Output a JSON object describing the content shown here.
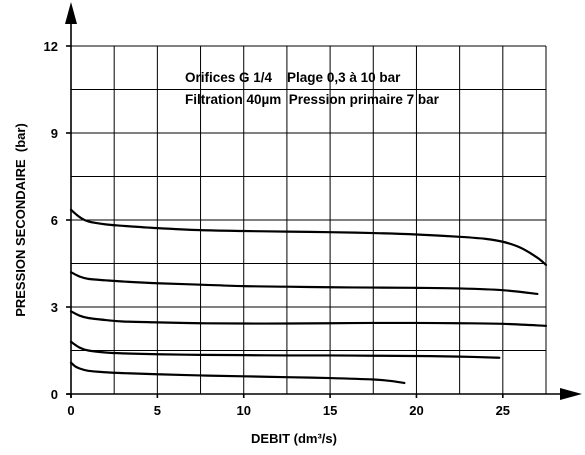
{
  "chart_data": {
    "type": "line",
    "xlabel": "DEBIT (dm³/s)",
    "ylabel": "PRESSION SECONDAIRE  (bar)",
    "xlim": [
      0,
      27.5
    ],
    "ylim": [
      0,
      12
    ],
    "x_ticks": [
      0,
      5,
      10,
      15,
      20,
      25
    ],
    "y_ticks": [
      0,
      3,
      6,
      9,
      12
    ],
    "x_grid_step": 2.5,
    "y_grid_step": 1.5,
    "grid": true,
    "annotations": [
      "Orifices G 1/4    Plage 0,3 à 10 bar",
      "Filtration 40µm  Pression primaire 7 bar"
    ],
    "series": [
      {
        "x": [
          0,
          0.5,
          1,
          2,
          3,
          5,
          7.5,
          10,
          12.5,
          15,
          17.5,
          20,
          22.5,
          24,
          25,
          26,
          27,
          27.5
        ],
        "y": [
          6.35,
          6.1,
          5.95,
          5.85,
          5.8,
          5.72,
          5.65,
          5.62,
          5.6,
          5.58,
          5.55,
          5.5,
          5.42,
          5.35,
          5.25,
          5.05,
          4.7,
          4.45
        ]
      },
      {
        "x": [
          0,
          0.5,
          1,
          2,
          3,
          5,
          7.5,
          10,
          12.5,
          15,
          17.5,
          20,
          22.5,
          25,
          27
        ],
        "y": [
          4.2,
          4.05,
          3.97,
          3.92,
          3.88,
          3.82,
          3.77,
          3.72,
          3.7,
          3.68,
          3.67,
          3.66,
          3.64,
          3.58,
          3.45
        ]
      },
      {
        "x": [
          0,
          0.5,
          1,
          2,
          3,
          5,
          7.5,
          10,
          12.5,
          15,
          17.5,
          20,
          22.5,
          25,
          27.5
        ],
        "y": [
          2.85,
          2.7,
          2.62,
          2.55,
          2.5,
          2.47,
          2.44,
          2.43,
          2.43,
          2.44,
          2.45,
          2.45,
          2.44,
          2.42,
          2.35
        ]
      },
      {
        "x": [
          0,
          0.5,
          1,
          2,
          3,
          5,
          7.5,
          10,
          12.5,
          15,
          17.5,
          20,
          22.5,
          24.8
        ],
        "y": [
          1.8,
          1.6,
          1.5,
          1.43,
          1.4,
          1.37,
          1.35,
          1.34,
          1.33,
          1.33,
          1.32,
          1.31,
          1.29,
          1.25
        ]
      },
      {
        "x": [
          0,
          0.25,
          0.5,
          1,
          2,
          3,
          5,
          7.5,
          10,
          12.5,
          15,
          17.5,
          18.5,
          19.3
        ],
        "y": [
          1.08,
          0.95,
          0.88,
          0.8,
          0.75,
          0.72,
          0.68,
          0.64,
          0.61,
          0.58,
          0.55,
          0.5,
          0.45,
          0.38
        ]
      }
    ]
  }
}
